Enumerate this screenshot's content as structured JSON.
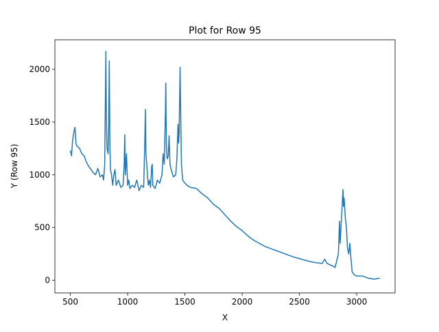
{
  "chart_data": {
    "type": "line",
    "title": "Plot for Row 95",
    "xlabel": "X",
    "ylabel": "Y (Row 95)",
    "color": "#1f77b4",
    "x": [
      500,
      510,
      520,
      530,
      540,
      550,
      560,
      580,
      600,
      620,
      640,
      660,
      680,
      700,
      720,
      740,
      760,
      780,
      790,
      800,
      810,
      815,
      820,
      830,
      835,
      840,
      845,
      850,
      860,
      870,
      880,
      890,
      900,
      920,
      940,
      960,
      970,
      975,
      980,
      990,
      1000,
      1010,
      1020,
      1040,
      1060,
      1080,
      1100,
      1120,
      1140,
      1150,
      1155,
      1160,
      1170,
      1180,
      1190,
      1200,
      1210,
      1215,
      1220,
      1240,
      1260,
      1280,
      1300,
      1310,
      1320,
      1330,
      1333,
      1338,
      1345,
      1355,
      1362,
      1370,
      1380,
      1400,
      1420,
      1430,
      1440,
      1445,
      1450,
      1458,
      1462,
      1470,
      1480,
      1500,
      1520,
      1550,
      1600,
      1650,
      1700,
      1750,
      1800,
      1850,
      1900,
      1950,
      2000,
      2050,
      2100,
      2150,
      2200,
      2250,
      2300,
      2350,
      2400,
      2450,
      2500,
      2550,
      2600,
      2650,
      2700,
      2720,
      2740,
      2760,
      2780,
      2800,
      2810,
      2820,
      2840,
      2850,
      2855,
      2860,
      2870,
      2880,
      2885,
      2890,
      2900,
      2910,
      2920,
      2930,
      2940,
      2950,
      2960,
      2980,
      3000,
      3050,
      3100,
      3150,
      3200
    ],
    "values": [
      1230,
      1180,
      1330,
      1400,
      1450,
      1290,
      1270,
      1250,
      1200,
      1180,
      1120,
      1080,
      1050,
      1020,
      1000,
      1060,
      980,
      1000,
      950,
      1100,
      2170,
      1500,
      1250,
      1200,
      1500,
      2080,
      1300,
      1050,
      1000,
      900,
      1000,
      1050,
      900,
      950,
      880,
      900,
      1100,
      1380,
      1000,
      1200,
      900,
      950,
      870,
      900,
      880,
      950,
      850,
      900,
      880,
      1300,
      1620,
      1200,
      1050,
      900,
      950,
      880,
      1080,
      1100,
      900,
      870,
      950,
      920,
      1000,
      1200,
      1100,
      1600,
      1870,
      1300,
      1150,
      1180,
      1370,
      1100,
      1050,
      980,
      1000,
      1150,
      1480,
      1300,
      1400,
      2020,
      1700,
      1100,
      950,
      920,
      900,
      880,
      870,
      820,
      780,
      720,
      680,
      620,
      560,
      510,
      470,
      420,
      380,
      350,
      320,
      300,
      280,
      260,
      240,
      220,
      205,
      190,
      175,
      165,
      160,
      200,
      160,
      150,
      140,
      130,
      120,
      160,
      250,
      560,
      350,
      450,
      650,
      860,
      700,
      780,
      600,
      500,
      300,
      250,
      350,
      200,
      80,
      50,
      40,
      40,
      20,
      10,
      20
    ],
    "xlim": [
      365,
      3335
    ],
    "ylim": [
      -120,
      2280
    ],
    "xticks": [
      500,
      1000,
      1500,
      2000,
      2500,
      3000
    ],
    "yticks": [
      0,
      500,
      1000,
      1500,
      2000
    ]
  }
}
